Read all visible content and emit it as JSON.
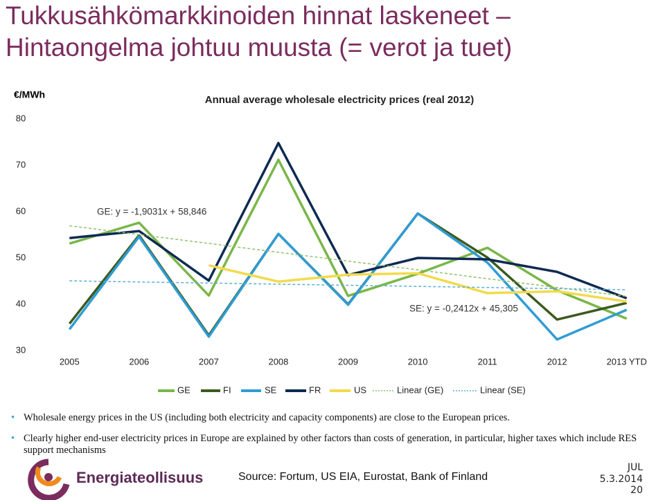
{
  "slide": {
    "title_lines": [
      "Tukkusähkömarkkinoiden hinnat laskeneet –",
      "Hintaongelma johtuu muusta (= verot ja tuet)"
    ],
    "bullets": [
      "Wholesale energy prices in the US (including both electricity and capacity components) are close to the European prices.",
      "Clearly higher end-user electricity prices in Europe are explained by other factors than costs of generation, in particular, higher taxes which include RES support mechanisms"
    ],
    "source": "Source: Fortum, US EIA, Eurostat, Bank of Finland",
    "logo": "Energiateollisuus",
    "tag": "JUL",
    "date": "5.3.2014",
    "page": "20"
  },
  "chart_data": {
    "type": "line",
    "title": "Annual average wholesale electricity prices (real 2012)",
    "y_label": "€/MWh",
    "annotations": [
      "GE: y = -1,9031x + 58,846",
      "SE: y = -0,2412x + 45,305"
    ],
    "categories": [
      "2005",
      "2006",
      "2007",
      "2008",
      "2009",
      "2010",
      "2011",
      "2012",
      "2013 YTD"
    ],
    "ylim": [
      30,
      80
    ],
    "yticks": [
      30,
      40,
      50,
      60,
      70,
      80
    ],
    "grid": false,
    "series": [
      {
        "name": "GE",
        "color": "#7ab648",
        "style": "solid",
        "values": [
          53.1,
          57.6,
          41.9,
          71.2,
          41.8,
          46.6,
          52.2,
          43.0,
          36.9
        ]
      },
      {
        "name": "FI",
        "color": "#3b5a1f",
        "style": "solid",
        "values": [
          35.8,
          54.9,
          33.3,
          55.2,
          40.0,
          59.6,
          50.1,
          36.7,
          40.3
        ]
      },
      {
        "name": "SE",
        "color": "#2f9cd4",
        "style": "solid",
        "values": [
          34.6,
          54.6,
          33.0,
          55.2,
          39.9,
          59.6,
          49.0,
          32.4,
          38.8
        ]
      },
      {
        "name": "FR",
        "color": "#0e2a52",
        "style": "solid",
        "values": [
          54.3,
          55.8,
          45.1,
          74.8,
          46.3,
          50.0,
          49.7,
          47.0,
          41.3
        ]
      },
      {
        "name": "US",
        "color": "#f2da4c",
        "style": "solid",
        "values": [
          null,
          null,
          48.4,
          44.9,
          46.4,
          46.7,
          42.4,
          42.8,
          40.6
        ]
      },
      {
        "name": "Linear (GE)",
        "color": "#8fc06a",
        "style": "dashed",
        "values": [
          56.94,
          55.04,
          53.14,
          51.23,
          49.33,
          47.43,
          45.52,
          43.62,
          41.72
        ]
      },
      {
        "name": "Linear (SE)",
        "color": "#5aaed8",
        "style": "dashed",
        "values": [
          45.06,
          44.82,
          44.58,
          44.34,
          44.1,
          43.86,
          43.62,
          43.38,
          43.14
        ]
      }
    ]
  }
}
